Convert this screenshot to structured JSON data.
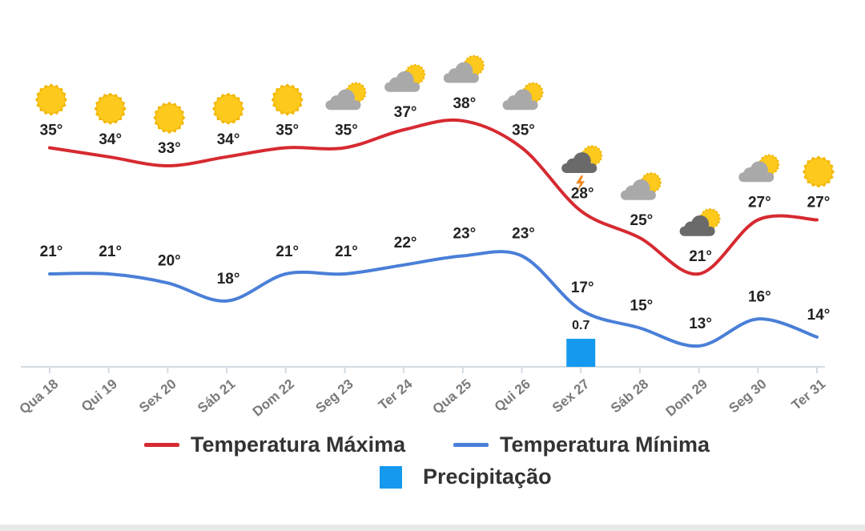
{
  "colors": {
    "max_line": "#d62a31",
    "min_line": "#4a7fd8",
    "precip": "#1599ee",
    "sun": "#fcc91c",
    "sun_stroke": "#f2b705",
    "cloud_light": "#a9a9a9",
    "cloud_dark": "#6a6a6a",
    "bolt": "#f08a24",
    "axis": "#d2dae2",
    "tick_text": "#7a7a7a",
    "label_text": "#222222"
  },
  "chart_data": {
    "type": "line",
    "categories": [
      "Qua 18",
      "Qui 19",
      "Sex 20",
      "Sáb 21",
      "Dom 22",
      "Seg 23",
      "Ter 24",
      "Qua 25",
      "Qui 26",
      "Sex 27",
      "Sáb 28",
      "Dom 29",
      "Seg 30",
      "Ter 31"
    ],
    "series": [
      {
        "name": "Temperatura Máxima",
        "values": [
          35,
          34,
          33,
          34,
          35,
          35,
          37,
          38,
          35,
          28,
          25,
          21,
          27,
          27
        ],
        "labels": [
          "35°",
          "34°",
          "33°",
          "34°",
          "35°",
          "35°",
          "37°",
          "38°",
          "35°",
          "28°",
          "25°",
          "21°",
          "27°",
          "27°"
        ]
      },
      {
        "name": "Temperatura Mínima",
        "values": [
          21,
          21,
          20,
          18,
          21,
          21,
          22,
          23,
          23,
          17,
          15,
          13,
          16,
          14
        ],
        "labels": [
          "21°",
          "21°",
          "20°",
          "18°",
          "21°",
          "21°",
          "22°",
          "23°",
          "23°",
          "17°",
          "15°",
          "13°",
          "16°",
          "14°"
        ]
      }
    ],
    "precipitation": {
      "name": "Precipitação",
      "values": [
        0,
        0,
        0,
        0,
        0,
        0,
        0,
        0,
        0,
        0.7,
        0,
        0,
        0,
        0
      ],
      "labels": [
        "",
        "",
        "",
        "",
        "",
        "",
        "",
        "",
        "",
        "0.7",
        "",
        "",
        "",
        ""
      ]
    },
    "weather_icons": [
      "sun-icon",
      "sun-icon",
      "sun-icon",
      "sun-icon",
      "sun-icon",
      "partly-cloudy-icon",
      "partly-cloudy-icon",
      "partly-cloudy-icon",
      "partly-cloudy-icon",
      "thunderstorm-icon",
      "partly-cloudy-icon",
      "cloudy-icon",
      "partly-cloudy-icon",
      "sun-icon"
    ],
    "legend": {
      "max": "Temperatura Máxima",
      "min": "Temperatura Mínima",
      "precip": "Precipitação",
      "placement": "bottom"
    },
    "grid": false
  }
}
